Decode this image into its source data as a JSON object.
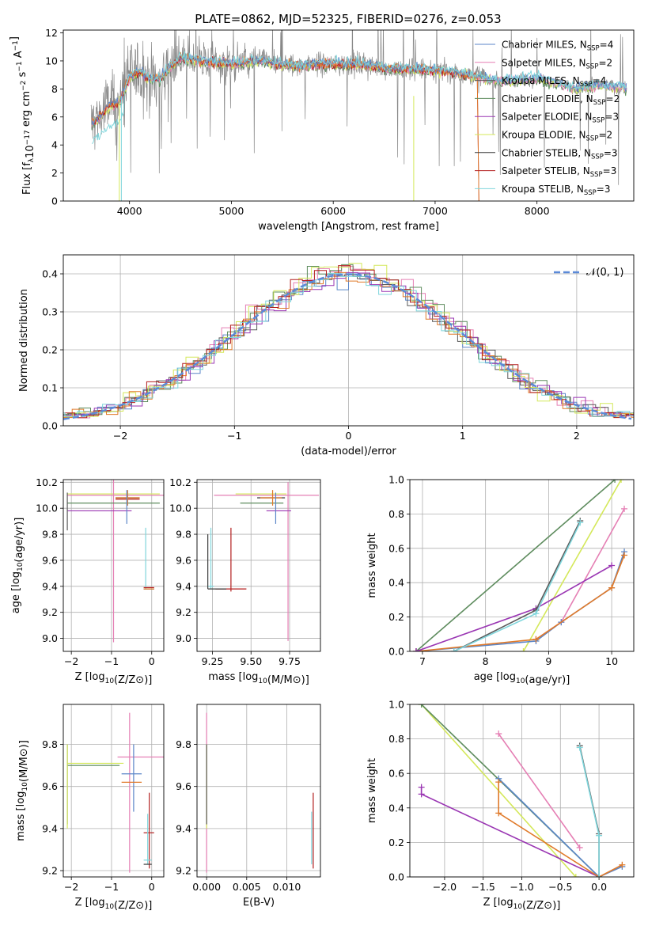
{
  "figure_title": "PLATE=0862, MJD=52325, FIBERID=0276, z=0.053",
  "colors": {
    "Chabrier MILES": "#5b86c8",
    "Salpeter MILES": "#e57fb4",
    "Kroupa MILES": "#5a5a5a",
    "Chabrier ELODIE": "#5e8c5e",
    "Salpeter ELODIE": "#9a36b3",
    "Kroupa ELODIE": "#d4e85a",
    "Chabrier STELIB": "#3c3c3c",
    "Salpeter STELIB": "#b31e1e",
    "Kroupa STELIB": "#7fd6dc",
    "orange": "#e07a2a",
    "normal": "#5b8ad8",
    "data": "#888888"
  },
  "chart_data": [
    {
      "id": "spectrum",
      "type": "line",
      "xlabel": "wavelength [Angstrom, rest frame]",
      "ylabel": "Flux [f_λ10^-17 erg cm^-2 s^-1 A^-1]",
      "xlim": [
        3350,
        8950
      ],
      "ylim": [
        0,
        12.2
      ],
      "xticks": [
        4000,
        5000,
        6000,
        7000,
        8000
      ],
      "yticks": [
        0,
        2,
        4,
        6,
        8,
        10,
        12
      ],
      "grid": false,
      "legend_position": "upper right",
      "legend": [
        {
          "name": "Chabrier MILES",
          "suffix": "=4",
          "color": "#5b86c8"
        },
        {
          "name": "Salpeter MILES",
          "suffix": "=2",
          "color": "#e57fb4"
        },
        {
          "name": "Kroupa MILES",
          "suffix": "=4",
          "color": "#5a5a5a"
        },
        {
          "name": "Chabrier ELODIE",
          "suffix": "=2",
          "color": "#5e8c5e"
        },
        {
          "name": "Salpeter ELODIE",
          "suffix": "=3",
          "color": "#9a36b3"
        },
        {
          "name": "Kroupa ELODIE",
          "suffix": "=2",
          "color": "#d4e85a"
        },
        {
          "name": "Chabrier STELIB",
          "suffix": "=3",
          "color": "#3c3c3c"
        },
        {
          "name": "Salpeter STELIB",
          "suffix": "=3",
          "color": "#b31e1e"
        },
        {
          "name": "Kroupa STELIB",
          "suffix": "=3",
          "color": "#7fd6dc"
        }
      ],
      "continuum": {
        "x": [
          3620,
          3700,
          3800,
          3900,
          4000,
          4100,
          4200,
          4300,
          4400,
          4500,
          4700,
          5000,
          5300,
          5600,
          5900,
          6200,
          6500,
          6800,
          7000,
          7200,
          7400,
          7600,
          7800,
          8000,
          8200,
          8400,
          8600,
          8800
        ],
        "y": [
          5.5,
          6.0,
          6.8,
          7.0,
          8.8,
          9.3,
          8.7,
          8.7,
          9.6,
          10.2,
          10.0,
          9.8,
          10.0,
          9.6,
          9.8,
          9.8,
          9.5,
          9.4,
          9.3,
          9.2,
          8.9,
          8.6,
          8.6,
          8.8,
          8.4,
          8.0,
          8.3,
          8.1
        ]
      }
    },
    {
      "id": "residuals",
      "type": "histogram",
      "xlabel": "(data-model)/error",
      "ylabel": "Normed distribution",
      "xlim": [
        -2.5,
        2.5
      ],
      "ylim": [
        0,
        0.45
      ],
      "xticks": [
        -2,
        -1,
        0,
        1,
        2
      ],
      "yticks": [
        0.0,
        0.1,
        0.2,
        0.3,
        0.4
      ],
      "grid": true,
      "legend_position": "upper right",
      "normal_label": "𝒩(0, 1)"
    },
    {
      "id": "age_vs_Z",
      "type": "errorbar",
      "xlabel": "Z [log10(Z/Z⊙)]",
      "ylabel": "age [log10(age/yr)]",
      "xlim": [
        -2.2,
        0.3
      ],
      "ylim": [
        8.9,
        10.22
      ],
      "xticks": [
        -2,
        -1,
        0
      ],
      "yticks": [
        9.0,
        9.2,
        9.4,
        9.6,
        9.8,
        10.0,
        10.2
      ],
      "points": [
        {
          "series": "Kroupa ELODIE",
          "x": -0.95,
          "xerr": [
            1.15,
            1.15
          ],
          "y": 10.11,
          "yerr": [
            0,
            0
          ]
        },
        {
          "series": "Salpeter MILES",
          "x": -0.95,
          "xerr": [
            1.15,
            1.25
          ],
          "y": 10.1,
          "yerr": [
            1.13,
            0.12
          ]
        },
        {
          "series": "Chabrier ELODIE",
          "x": -0.95,
          "xerr": [
            1.15,
            1.15
          ],
          "y": 10.04,
          "yerr": [
            0,
            0
          ]
        },
        {
          "series": "Salpeter ELODIE",
          "x": -1.3,
          "xerr": [
            0.8,
            0.8
          ],
          "y": 9.98,
          "yerr": [
            0,
            0
          ]
        },
        {
          "series": "Kroupa MILES",
          "x": -2.1,
          "xerr": [
            0,
            0
          ],
          "y": 10.0,
          "yerr": [
            0.17,
            0.12
          ]
        },
        {
          "series": "Chabrier STELIB",
          "x": -0.6,
          "xerr": [
            0.3,
            0.3
          ],
          "y": 10.08,
          "yerr": [
            0,
            0
          ]
        },
        {
          "series": "Salpeter STELIB",
          "x": -0.6,
          "xerr": [
            0.3,
            0.3
          ],
          "y": 10.07,
          "yerr": [
            0,
            0
          ]
        },
        {
          "series": "orange",
          "x": -0.6,
          "xerr": [
            0.3,
            0.3
          ],
          "y": 10.08,
          "yerr": [
            0.06,
            0.06
          ]
        },
        {
          "series": "Chabrier MILES",
          "x": -0.62,
          "xerr": [
            0,
            0
          ],
          "y": 10.02,
          "yerr": [
            0.14,
            0.12
          ]
        },
        {
          "series": "Kroupa STELIB",
          "x": -0.15,
          "xerr": [
            0,
            0
          ],
          "y": 9.4,
          "yerr": [
            0.02,
            0.45
          ]
        },
        {
          "series": "Chabrier STELIB",
          "x": -0.06,
          "xerr": [
            0.14,
            0.12
          ],
          "y": 9.38,
          "yerr": [
            0,
            0
          ]
        },
        {
          "series": "Salpeter STELIB",
          "x": -0.06,
          "xerr": [
            0.14,
            0.12
          ],
          "y": 9.39,
          "yerr": [
            0,
            0
          ]
        },
        {
          "series": "orange",
          "x": -0.06,
          "xerr": [
            0.14,
            0.12
          ],
          "y": 9.38,
          "yerr": [
            0,
            0
          ]
        }
      ]
    },
    {
      "id": "age_vs_mass",
      "type": "errorbar",
      "xlabel": "mass [log10(M/M⊙)]",
      "ylabel": "",
      "xlim": [
        9.15,
        9.95
      ],
      "ylim": [
        8.9,
        10.22
      ],
      "xticks": [
        9.25,
        9.5,
        9.75
      ],
      "yticks": [
        9.0,
        9.2,
        9.4,
        9.6,
        9.8,
        10.0,
        10.2
      ],
      "points": [
        {
          "series": "Salpeter MILES",
          "x": 9.74,
          "xerr": [
            0.48,
            0.2
          ],
          "y": 10.1,
          "yerr": [
            1.12,
            0.1
          ]
        },
        {
          "series": "Kroupa ELODIE",
          "x": 9.68,
          "xerr": [
            0.28,
            0.05
          ],
          "y": 10.11,
          "yerr": [
            0,
            0
          ]
        },
        {
          "series": "Chabrier ELODIE",
          "x": 9.63,
          "xerr": [
            0.2,
            0.08
          ],
          "y": 10.04,
          "yerr": [
            0,
            0
          ]
        },
        {
          "series": "Salpeter ELODIE",
          "x": 9.7,
          "xerr": [
            0.1,
            0.06
          ],
          "y": 9.98,
          "yerr": [
            0,
            0
          ]
        },
        {
          "series": "Chabrier STELIB",
          "x": 9.62,
          "xerr": [
            0.08,
            0.1
          ],
          "y": 10.08,
          "yerr": [
            0,
            0
          ]
        },
        {
          "series": "orange",
          "x": 9.64,
          "xerr": [
            0.08,
            0.06
          ],
          "y": 10.08,
          "yerr": [
            0.06,
            0.06
          ]
        },
        {
          "series": "Chabrier MILES",
          "x": 9.66,
          "xerr": [
            0,
            0
          ],
          "y": 10.02,
          "yerr": [
            0.14,
            0.1
          ]
        },
        {
          "series": "Kroupa STELIB",
          "x": 9.24,
          "xerr": [
            0.02,
            0.02
          ],
          "y": 9.4,
          "yerr": [
            0.02,
            0.45
          ]
        },
        {
          "series": "Chabrier STELIB",
          "x": 9.22,
          "xerr": [
            0,
            0
          ],
          "y": 9.4,
          "yerr": [
            0.02,
            0.4
          ]
        },
        {
          "series": "Salpeter STELIB",
          "x": 9.37,
          "xerr": [
            0.1,
            0.1
          ],
          "y": 9.38,
          "yerr": [
            0.02,
            0.47
          ]
        },
        {
          "series": "Chabrier STELIB",
          "x": 9.28,
          "xerr": [
            0.06,
            0.06
          ],
          "y": 9.38,
          "yerr": [
            0,
            0
          ]
        }
      ]
    },
    {
      "id": "mass_weight_vs_age",
      "type": "line",
      "xlabel": "age [log10(age/yr)]",
      "ylabel": "mass weight",
      "xlim": [
        6.8,
        10.35
      ],
      "ylim": [
        0,
        1
      ],
      "xticks": [
        7,
        8,
        9,
        10
      ],
      "yticks": [
        0.0,
        0.2,
        0.4,
        0.6,
        0.8,
        1.0
      ],
      "grid": true,
      "series": [
        {
          "name": "Chabrier ELODIE",
          "x": [
            6.9,
            10.05
          ],
          "y": [
            0.0,
            1.0
          ]
        },
        {
          "name": "Kroupa ELODIE",
          "x": [
            8.6,
            10.15
          ],
          "y": [
            0.0,
            1.0
          ]
        },
        {
          "name": "Salpeter MILES",
          "x": [
            8.8,
            9.2,
            10.2
          ],
          "y": [
            0.07,
            0.17,
            0.83
          ]
        },
        {
          "name": "Chabrier MILES",
          "x": [
            6.9,
            8.8,
            9.2,
            10.0,
            10.2
          ],
          "y": [
            0.0,
            0.06,
            0.17,
            0.37,
            0.58
          ]
        },
        {
          "name": "orange",
          "x": [
            6.9,
            8.8,
            10.0,
            10.2
          ],
          "y": [
            0.0,
            0.07,
            0.37,
            0.56
          ]
        },
        {
          "name": "Salpeter ELODIE",
          "x": [
            6.9,
            8.8,
            10.0
          ],
          "y": [
            0.0,
            0.25,
            0.5
          ]
        },
        {
          "name": "Kroupa MILES",
          "x": [
            7.5,
            8.8,
            9.5
          ],
          "y": [
            0.0,
            0.24,
            0.76
          ]
        },
        {
          "name": "Kroupa STELIB",
          "x": [
            7.5,
            8.8,
            9.5
          ],
          "y": [
            0.0,
            0.22,
            0.75
          ]
        }
      ]
    },
    {
      "id": "mass_vs_Z",
      "type": "errorbar",
      "xlabel": "Z [log10(Z/Z⊙)]",
      "ylabel": "mass [log10(M/M⊙)]",
      "xlim": [
        -2.2,
        0.3
      ],
      "ylim": [
        9.17,
        9.99
      ],
      "xticks": [
        -2,
        -1,
        0
      ],
      "yticks": [
        9.2,
        9.4,
        9.6,
        9.8
      ],
      "points": [
        {
          "series": "Salpeter MILES",
          "x": -0.55,
          "xerr": [
            0.3,
            0.85
          ],
          "y": 9.74,
          "yerr": [
            0.55,
            0.21
          ]
        },
        {
          "series": "Kroupa ELODIE",
          "x": -1.3,
          "xerr": [
            0.8,
            0.6
          ],
          "y": 9.71,
          "yerr": [
            0,
            0
          ]
        },
        {
          "series": "Chabrier ELODIE",
          "x": -1.3,
          "xerr": [
            0.8,
            0.5
          ],
          "y": 9.7,
          "yerr": [
            0,
            0
          ]
        },
        {
          "series": "Kroupa MILES",
          "x": -2.1,
          "xerr": [
            0,
            0
          ],
          "y": 9.62,
          "yerr": [
            0.2,
            0.18
          ]
        },
        {
          "series": "Kroupa ELODIE",
          "x": -2.1,
          "xerr": [
            0,
            0
          ],
          "y": 9.6,
          "yerr": [
            0.2,
            0.2
          ]
        },
        {
          "series": "Chabrier MILES",
          "x": -0.45,
          "xerr": [
            0.3,
            0.2
          ],
          "y": 9.66,
          "yerr": [
            0.18,
            0.14
          ]
        },
        {
          "series": "orange",
          "x": -0.45,
          "xerr": [
            0.3,
            0.2
          ],
          "y": 9.62,
          "yerr": [
            0,
            0
          ]
        },
        {
          "series": "Salpeter STELIB",
          "x": -0.06,
          "xerr": [
            0.14,
            0.12
          ],
          "y": 9.38,
          "yerr": [
            0.17,
            0.19
          ]
        },
        {
          "series": "Kroupa STELIB",
          "x": -0.1,
          "xerr": [
            0.1,
            0.1
          ],
          "y": 9.25,
          "yerr": [
            0.02,
            0.22
          ]
        },
        {
          "series": "Chabrier STELIB",
          "x": -0.1,
          "xerr": [
            0.1,
            0.1
          ],
          "y": 9.23,
          "yerr": [
            0,
            0
          ]
        }
      ]
    },
    {
      "id": "mass_vs_EBV",
      "type": "errorbar",
      "xlabel": "E(B-V)",
      "ylabel": "",
      "xlim": [
        -0.0012,
        0.0142
      ],
      "ylim": [
        9.17,
        9.99
      ],
      "xticks": [
        0.0,
        0.005,
        0.01
      ],
      "xticklabels": [
        "0.000",
        "0.005",
        "0.010"
      ],
      "yticks": [
        9.2,
        9.4,
        9.6,
        9.8
      ],
      "points": [
        {
          "series": "Salpeter MILES",
          "x": 0.0,
          "xerr": [
            0,
            0
          ],
          "y": 9.74,
          "yerr": [
            0.55,
            0.21
          ]
        },
        {
          "series": "Kroupa ELODIE",
          "x": 0.0,
          "xerr": [
            0,
            0
          ],
          "y": 9.6,
          "yerr": [
            0.2,
            0.2
          ]
        },
        {
          "series": "Kroupa MILES",
          "x": 0.0,
          "xerr": [
            0,
            0
          ],
          "y": 9.62,
          "yerr": [
            0.2,
            0.18
          ]
        },
        {
          "series": "Salpeter STELIB",
          "x": 0.0133,
          "xerr": [
            0,
            0
          ],
          "y": 9.38,
          "yerr": [
            0.17,
            0.19
          ]
        },
        {
          "series": "Kroupa STELIB",
          "x": 0.0131,
          "xerr": [
            0,
            0
          ],
          "y": 9.35,
          "yerr": [
            0.12,
            0.13
          ]
        }
      ]
    },
    {
      "id": "mass_weight_vs_Z",
      "type": "line",
      "xlabel": "Z [log10(Z/Z⊙)]",
      "ylabel": "mass weight",
      "xlim": [
        -2.45,
        0.45
      ],
      "ylim": [
        0,
        1
      ],
      "xticks": [
        -2.0,
        -1.5,
        -1.0,
        -0.5,
        0.0
      ],
      "yticks": [
        0.0,
        0.2,
        0.4,
        0.6,
        0.8,
        1.0
      ],
      "grid": true,
      "series": [
        {
          "name": "Kroupa ELODIE",
          "x": [
            -2.3,
            -0.3
          ],
          "y": [
            1.0,
            0.0
          ]
        },
        {
          "name": "Chabrier ELODIE",
          "x": [
            -2.3,
            0.0
          ],
          "y": [
            1.0,
            0.0
          ]
        },
        {
          "name": "Salpeter ELODIE",
          "x": [
            -2.3,
            -2.3,
            0.0
          ],
          "y": [
            0.52,
            0.48,
            0.0
          ]
        },
        {
          "name": "Salpeter MILES",
          "x": [
            -1.3,
            -0.25
          ],
          "y": [
            0.83,
            0.17
          ]
        },
        {
          "name": "Chabrier MILES",
          "x": [
            -1.3,
            0.0,
            0.3
          ],
          "y": [
            0.57,
            0.0,
            0.06
          ]
        },
        {
          "name": "orange",
          "x": [
            -1.3,
            -1.3,
            0.0,
            0.3
          ],
          "y": [
            0.55,
            0.37,
            0.0,
            0.07
          ]
        },
        {
          "name": "Kroupa MILES",
          "x": [
            -0.25,
            0.0,
            0.0
          ],
          "y": [
            0.76,
            0.25,
            0.0
          ]
        },
        {
          "name": "Kroupa STELIB",
          "x": [
            -0.25,
            0.0,
            0.0
          ],
          "y": [
            0.75,
            0.24,
            0.0
          ]
        }
      ]
    }
  ]
}
